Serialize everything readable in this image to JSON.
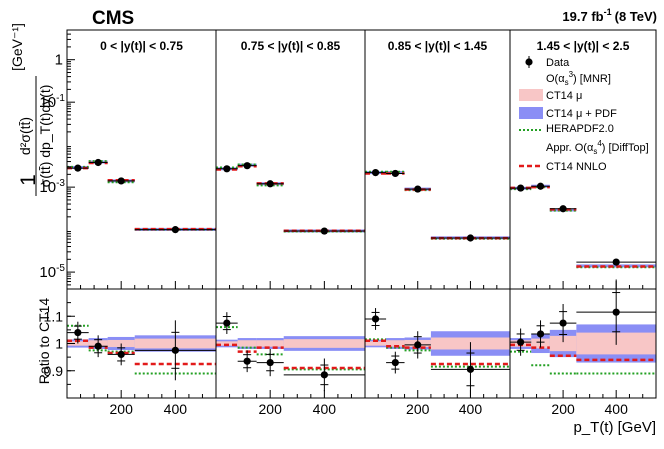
{
  "chart_data": {
    "type": "scatter",
    "title": "CMS",
    "lumi_label": "19.7 fb",
    "lumi_exp": "-1",
    "energy": "(8 TeV)",
    "top_ylabel": {
      "line1": "1",
      "num": "d²σ(tt̄)",
      "den": "σ(tt̄) dp_T(t)dy(t)",
      "unit": "[GeV⁻¹]"
    },
    "bottom_ylabel": "Ratio to CT14",
    "xlabel": "p_T(t) [GeV]",
    "top_yscale": "log",
    "top_ylim": [
      4e-06,
      5
    ],
    "top_yticks": [
      {
        "v": 1,
        "b": "1",
        "e": ""
      },
      {
        "v": 0.1,
        "b": "10",
        "e": "-1"
      },
      {
        "v": 0.001,
        "b": "10",
        "e": "-3"
      },
      {
        "v": 1e-05,
        "b": "10",
        "e": "-5"
      }
    ],
    "ratio_ylim": [
      0.8,
      1.2
    ],
    "ratio_yticks": [
      {
        "v": 0.9,
        "label": "0.9"
      },
      {
        "v": 1.0,
        "label": "1"
      },
      {
        "v": 1.1,
        "label": "1.1"
      }
    ],
    "xlim": [
      0,
      550
    ],
    "xticks": [
      {
        "v": 200,
        "label": "200"
      },
      {
        "v": 400,
        "label": "400"
      }
    ],
    "bin_edges": [
      0,
      80,
      150,
      250,
      550
    ],
    "bin_centers": [
      40,
      115,
      200,
      400
    ],
    "panels": [
      {
        "label": "0 < |y(t)| < 0.75",
        "data": [
          0.0028,
          0.0038,
          0.0014,
          0.0001
        ],
        "nnlo": [
          0.0028,
          0.0037,
          0.00145,
          0.000103
        ],
        "mnr": [
          0.0029,
          0.0039,
          0.0014,
          0.000101
        ],
        "hera": [
          0.003,
          0.0041,
          0.0013,
          0.0001
        ],
        "ratio_data": [
          1.04,
          0.99,
          0.96,
          0.975
        ],
        "ratio_err": [
          0.04,
          0.04,
          0.04,
          0.11
        ],
        "ratio_nnlo": [
          1.01,
          0.985,
          0.965,
          0.925
        ],
        "ratio_hera": [
          1.065,
          0.975,
          0.97,
          0.89
        ],
        "band_scale": [
          0.008,
          0.012,
          0.013,
          0.018
        ],
        "band_pdf": [
          0.015,
          0.02,
          0.024,
          0.03
        ]
      },
      {
        "label": "0.75 < |y(t)| < 0.85",
        "data": [
          0.0027,
          0.0032,
          0.0012,
          9.25e-05
        ],
        "nnlo": [
          0.0026,
          0.0031,
          0.00123,
          9.38e-05
        ],
        "mnr": [
          0.0027,
          0.0033,
          0.0012,
          9.3e-05
        ],
        "hera": [
          0.0029,
          0.0034,
          0.0011,
          9e-05
        ],
        "ratio_data": [
          1.075,
          0.935,
          0.93,
          0.885
        ],
        "ratio_err": [
          0.04,
          0.04,
          0.05,
          0.06
        ],
        "ratio_nnlo": [
          0.995,
          0.97,
          0.985,
          0.91
        ],
        "ratio_hera": [
          1.06,
          0.985,
          0.96,
          0.905
        ],
        "band_scale": [
          0.008,
          0.012,
          0.012,
          0.016
        ],
        "band_pdf": [
          0.014,
          0.02,
          0.02,
          0.027
        ]
      },
      {
        "label": "0.85 < |y(t)| < 1.45",
        "data": [
          0.0022,
          0.0021,
          0.0009,
          6.35e-05
        ],
        "nnlo": [
          0.0021,
          0.0021,
          0.00088,
          6.3e-05
        ],
        "mnr": [
          0.0022,
          0.0022,
          0.0009,
          6.4e-05
        ],
        "hera": [
          0.0023,
          0.0023,
          0.00085,
          6.1e-05
        ],
        "ratio_data": [
          1.09,
          0.93,
          0.995,
          0.905
        ],
        "ratio_err": [
          0.04,
          0.04,
          0.05,
          0.1
        ],
        "ratio_nnlo": [
          1.01,
          0.99,
          0.985,
          0.925
        ],
        "ratio_hera": [
          1.015,
          0.985,
          0.975,
          0.915
        ],
        "band_scale": [
          0.008,
          0.012,
          0.013,
          0.022
        ],
        "band_pdf": [
          0.014,
          0.02,
          0.022,
          0.045
        ]
      },
      {
        "label": "1.45 < |y(t)| < 2.5",
        "data": [
          0.00095,
          0.00105,
          0.00031,
          1.72e-05
        ],
        "nnlo": [
          0.00096,
          0.001,
          0.0003,
          1.35e-05
        ],
        "mnr": [
          0.00094,
          0.00105,
          0.00029,
          1.4e-05
        ],
        "hera": [
          0.0009,
          0.001,
          0.00028,
          1.3e-05
        ],
        "ratio_data": [
          1.005,
          1.035,
          1.075,
          1.115
        ],
        "ratio_err": [
          0.05,
          0.05,
          0.07,
          0.12
        ],
        "ratio_nnlo": [
          0.995,
          0.985,
          0.955,
          0.94
        ],
        "ratio_hera": [
          0.97,
          0.92,
          0.89,
          0.89
        ],
        "band_scale": [
          0.012,
          0.018,
          0.028,
          0.04
        ],
        "band_pdf": [
          0.02,
          0.035,
          0.05,
          0.07
        ]
      }
    ],
    "legend": {
      "data": "Data",
      "mnr_head": "O(α",
      "mnr_head_sub": "s",
      "mnr_head_sup": "3",
      "mnr_head_tail": ") [MNR]",
      "ct14_mu": "CT14 μ",
      "ct14_mu_pdf": "CT14 μ + PDF",
      "herapdf": "HERAPDF2.0",
      "appr_head": "Appr. O(α",
      "appr_head_sub": "s",
      "appr_head_sup": "4",
      "appr_head_tail": ") [DiffTop]",
      "ct14_nnlo": "CT14 NNLO"
    },
    "colors": {
      "band_scale": "#f8c6c6",
      "band_pdf": "#8a8ef5",
      "hera": "#23a023",
      "nnlo": "#e21a1a",
      "data": "#000000"
    }
  }
}
